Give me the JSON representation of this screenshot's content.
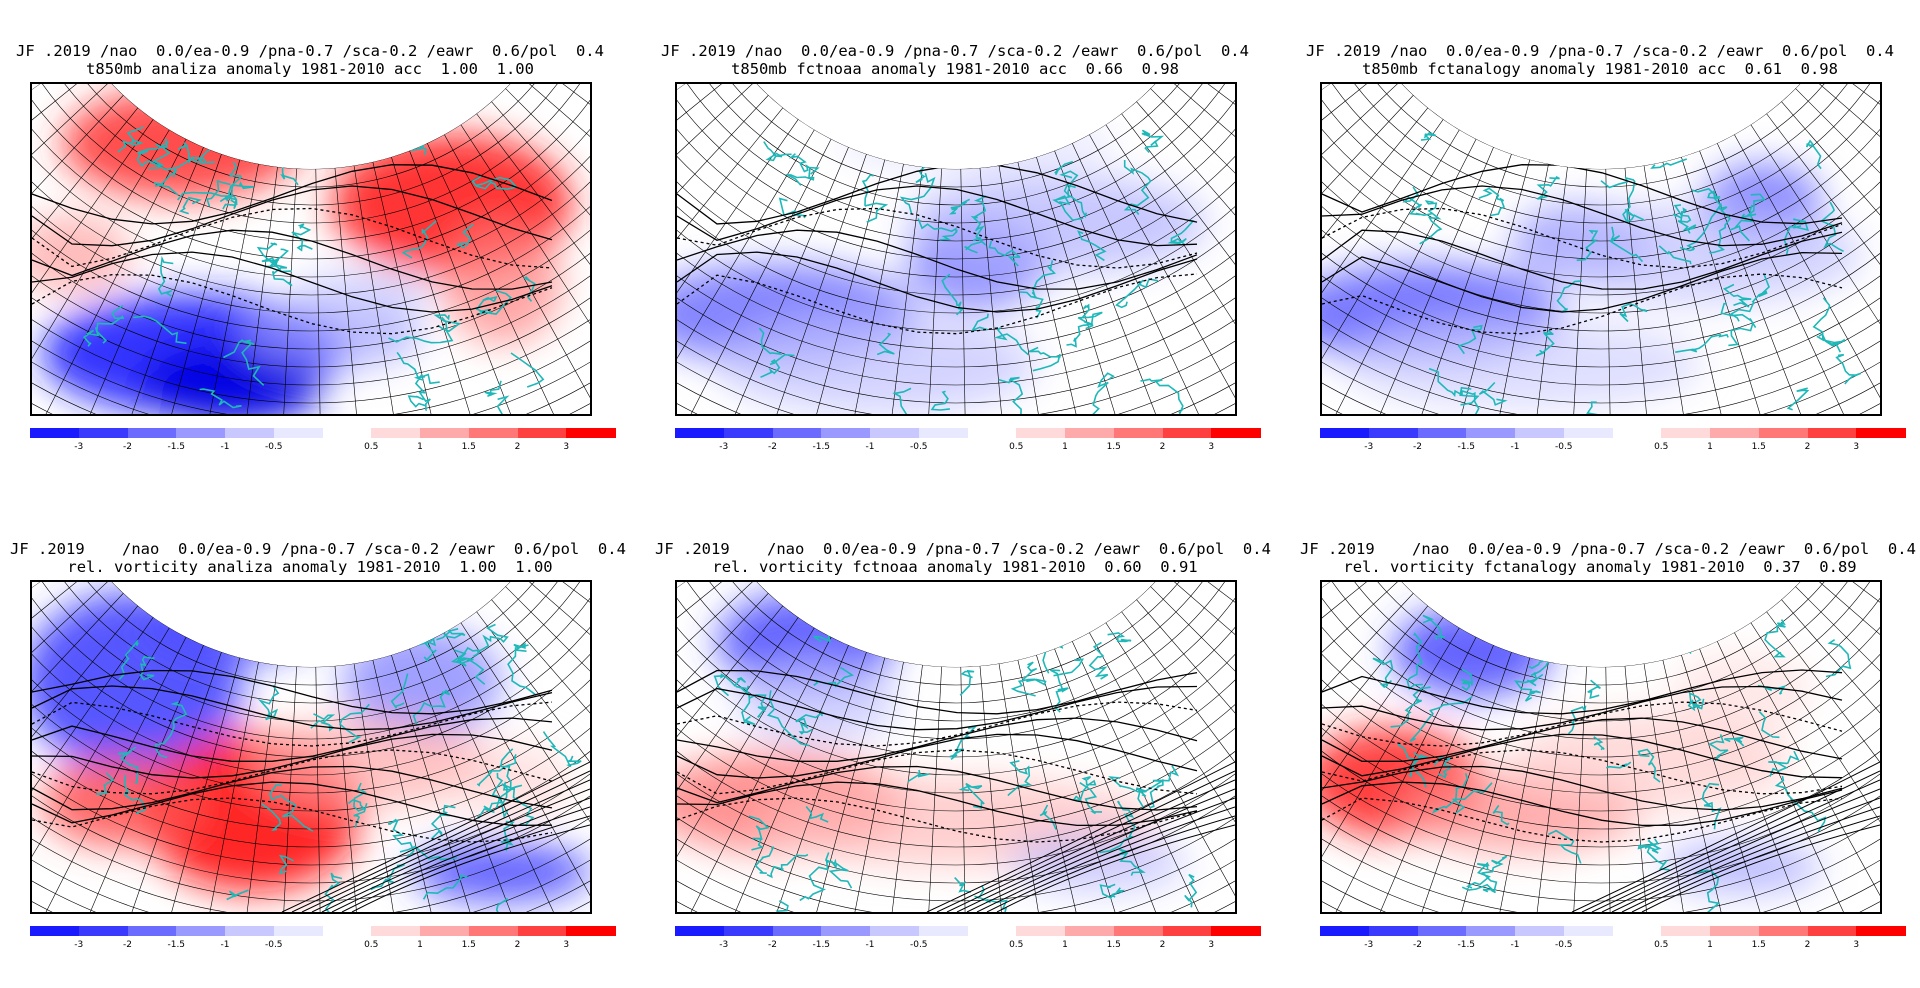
{
  "colors": {
    "blue_deep": "#0000ff",
    "red_deep": "#ff0000",
    "coast": "#1fb8b8",
    "legend": [
      "#1a1aff",
      "#3a3aff",
      "#6b6bff",
      "#9999ff",
      "#c8c8ff",
      "#e8e8ff",
      "#ffffff",
      "#ffdada",
      "#ffaaaa",
      "#ff7777",
      "#ff4040",
      "#ff0000"
    ]
  },
  "legend_labels": [
    "-3",
    "-2",
    "-1.5",
    "-1",
    "-0.5",
    "0.5",
    "1",
    "1.5",
    "2",
    "3"
  ],
  "panels": [
    {
      "line1": "JF .2019 /nao  0.0/ea-0.9 /pna-0.7 /sca-0.2 /eawr  0.6/pol  0.4",
      "line2": "t850mb analiza anomaly 1981-2010 acc  1.00  1.00",
      "field": "t850",
      "variant": "analysis"
    },
    {
      "line1": "JF .2019 /nao  0.0/ea-0.9 /pna-0.7 /sca-0.2 /eawr  0.6/pol  0.4",
      "line2": "t850mb fctnoaa anomaly 1981-2010 acc  0.66  0.98",
      "field": "t850",
      "variant": "noaa"
    },
    {
      "line1": "JF .2019 /nao  0.0/ea-0.9 /pna-0.7 /sca-0.2 /eawr  0.6/pol  0.4",
      "line2": "t850mb fctanalogy anomaly 1981-2010 acc  0.61  0.98",
      "field": "t850",
      "variant": "analogy"
    },
    {
      "line1": "JF .2019    /nao  0.0/ea-0.9 /pna-0.7 /sca-0.2 /eawr  0.6/pol  0.4",
      "line2": "rel. vorticity analiza anomaly 1981-2010  1.00  1.00",
      "field": "vort",
      "variant": "analysis"
    },
    {
      "line1": "JF .2019    /nao  0.0/ea-0.9 /pna-0.7 /sca-0.2 /eawr  0.6/pol  0.4",
      "line2": "rel. vorticity fctnoaa anomaly 1981-2010  0.60  0.91",
      "field": "vort",
      "variant": "noaa"
    },
    {
      "line1": "JF .2019    /nao  0.0/ea-0.9 /pna-0.7 /sca-0.2 /eawr  0.6/pol  0.4",
      "line2": "rel. vorticity fctanalogy anomaly 1981-2010  0.37  0.89",
      "field": "vort",
      "variant": "analogy"
    }
  ]
}
